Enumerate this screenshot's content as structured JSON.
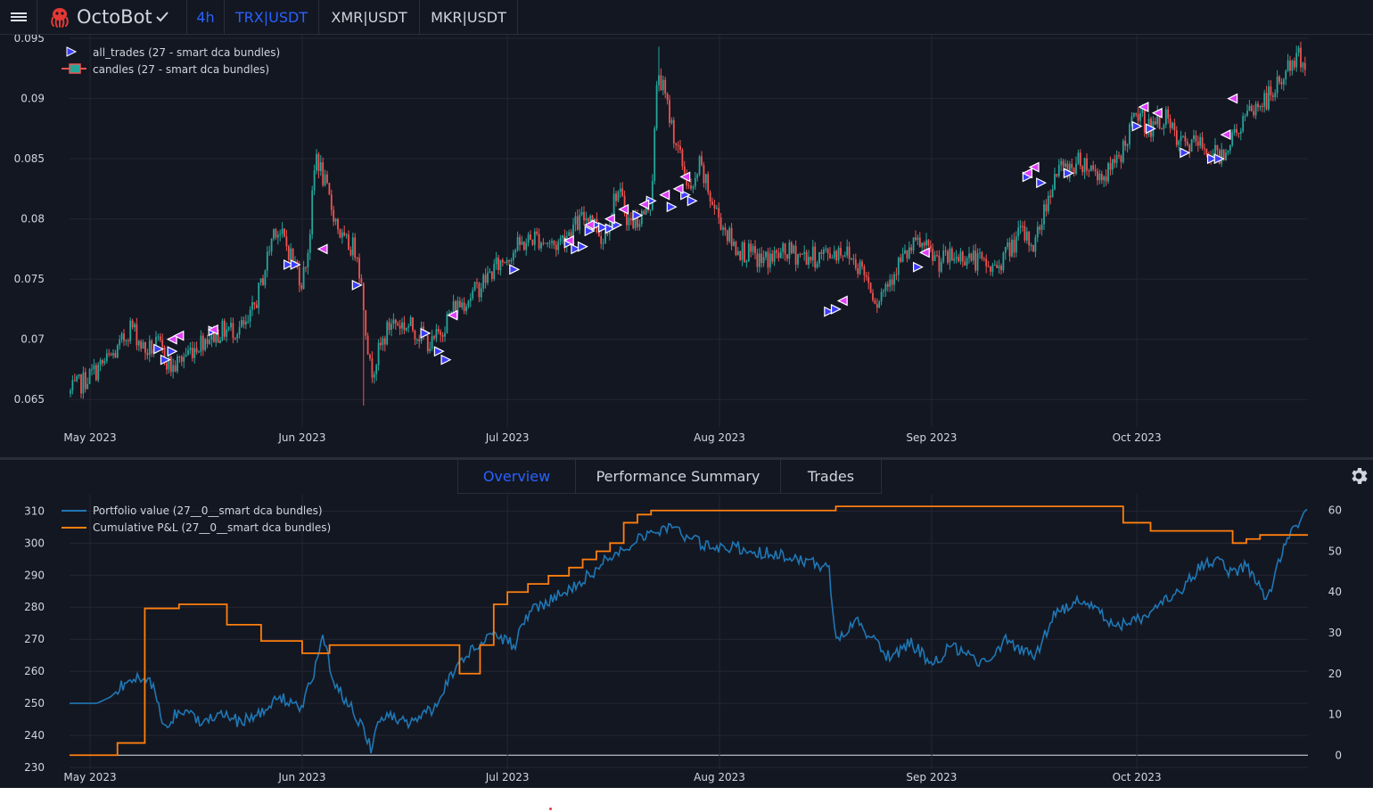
{
  "topbar": {
    "brand": "OctoBot",
    "timeframe": "4h",
    "pairs": [
      {
        "label": "TRX|USDT",
        "active": true
      },
      {
        "label": "XMR|USDT",
        "active": false
      },
      {
        "label": "MKR|USDT",
        "active": false
      }
    ]
  },
  "tabs": [
    {
      "label": "Overview",
      "active": true
    },
    {
      "label": "Performance Summary",
      "active": false
    },
    {
      "label": "Trades",
      "active": false
    }
  ],
  "colors": {
    "accent": "#2962ff",
    "candle_up": "#26a69a",
    "candle_down": "#ef5350",
    "buy_marker": "#3d3dff",
    "sell_marker": "#e040fb",
    "portfolio": "#1f77b4",
    "pnl": "#ff7f0e"
  },
  "chart_data": [
    {
      "type": "candlestick",
      "x_tick_labels": [
        "May 2023",
        "Jun 2023",
        "Jul 2023",
        "Aug 2023",
        "Sep 2023",
        "Oct 2023"
      ],
      "x_tick_dates": [
        "2023-05-01",
        "2023-06-01",
        "2023-07-01",
        "2023-08-01",
        "2023-09-01",
        "2023-10-01"
      ],
      "x_range": [
        "2023-04-28",
        "2023-10-26"
      ],
      "y_tick_labels": [
        "0.095",
        "0.09",
        "0.085",
        "0.08",
        "0.075",
        "0.07",
        "0.065"
      ],
      "ylim": [
        0.0642,
        0.0953
      ],
      "grid": true,
      "legend": {
        "placement": "top-left",
        "entries": [
          "all_trades (27 - smart dca bundles)",
          "candles (27 - smart dca bundles)"
        ]
      },
      "close_series": {
        "dates": [
          "2023-04-28",
          "2023-05-02",
          "2023-05-05",
          "2023-05-07",
          "2023-05-09",
          "2023-05-11",
          "2023-05-13",
          "2023-05-15",
          "2023-05-18",
          "2023-05-21",
          "2023-05-24",
          "2023-05-26",
          "2023-05-28",
          "2023-05-30",
          "2023-06-01",
          "2023-06-02",
          "2023-06-03",
          "2023-06-05",
          "2023-06-07",
          "2023-06-09",
          "2023-06-10",
          "2023-06-11",
          "2023-06-14",
          "2023-06-17",
          "2023-06-20",
          "2023-06-23",
          "2023-06-26",
          "2023-06-29",
          "2023-07-02",
          "2023-07-05",
          "2023-07-08",
          "2023-07-11",
          "2023-07-13",
          "2023-07-15",
          "2023-07-17",
          "2023-07-19",
          "2023-07-21",
          "2023-07-22",
          "2023-07-23",
          "2023-07-26",
          "2023-07-28",
          "2023-07-29",
          "2023-07-31",
          "2023-08-03",
          "2023-08-07",
          "2023-08-11",
          "2023-08-15",
          "2023-08-19",
          "2023-08-22",
          "2023-08-24",
          "2023-08-27",
          "2023-08-30",
          "2023-09-02",
          "2023-09-06",
          "2023-09-10",
          "2023-09-12",
          "2023-09-14",
          "2023-09-16",
          "2023-09-19",
          "2023-09-23",
          "2023-09-26",
          "2023-09-28",
          "2023-10-01",
          "2023-10-03",
          "2023-10-05",
          "2023-10-07",
          "2023-10-10",
          "2023-10-13",
          "2023-10-15",
          "2023-10-17",
          "2023-10-19",
          "2023-10-21",
          "2023-10-23",
          "2023-10-25",
          "2023-10-26"
        ],
        "values": [
          0.0655,
          0.0675,
          0.069,
          0.0712,
          0.069,
          0.0695,
          0.0675,
          0.0688,
          0.0702,
          0.0708,
          0.071,
          0.0745,
          0.0795,
          0.0775,
          0.0748,
          0.078,
          0.0855,
          0.0815,
          0.078,
          0.0775,
          0.0728,
          0.0672,
          0.0715,
          0.071,
          0.0695,
          0.0725,
          0.0738,
          0.0758,
          0.0775,
          0.0785,
          0.0778,
          0.0795,
          0.0805,
          0.0782,
          0.0825,
          0.0795,
          0.0805,
          0.0815,
          0.0925,
          0.0855,
          0.0818,
          0.0845,
          0.0812,
          0.0778,
          0.0765,
          0.0772,
          0.0768,
          0.0775,
          0.0758,
          0.0732,
          0.0762,
          0.078,
          0.0765,
          0.077,
          0.0758,
          0.0772,
          0.0788,
          0.0778,
          0.0838,
          0.0848,
          0.0835,
          0.0845,
          0.0888,
          0.0875,
          0.0885,
          0.0862,
          0.0862,
          0.0852,
          0.0868,
          0.0885,
          0.0895,
          0.0905,
          0.0925,
          0.0935,
          0.0928
        ]
      },
      "spikes": [
        {
          "date": "2023-06-03",
          "high": 0.0858
        },
        {
          "date": "2023-06-10",
          "low": 0.0645
        },
        {
          "date": "2023-07-23",
          "high": 0.0943
        }
      ],
      "buy_trades": {
        "dates": [
          "2023-05-11",
          "2023-05-12",
          "2023-05-13",
          "2023-05-19",
          "2023-05-30",
          "2023-05-31",
          "2023-06-09",
          "2023-06-19",
          "2023-06-21",
          "2023-06-22",
          "2023-07-02",
          "2023-07-10",
          "2023-07-11",
          "2023-07-12",
          "2023-07-13",
          "2023-07-14",
          "2023-07-15",
          "2023-07-16",
          "2023-07-17",
          "2023-07-20",
          "2023-07-22",
          "2023-07-25",
          "2023-07-27",
          "2023-07-28",
          "2023-08-17",
          "2023-08-18",
          "2023-08-30",
          "2023-09-15",
          "2023-09-17",
          "2023-09-21",
          "2023-10-01",
          "2023-10-03",
          "2023-10-08",
          "2023-10-12",
          "2023-10-13"
        ],
        "values": [
          0.0692,
          0.0683,
          0.069,
          0.0707,
          0.0762,
          0.0762,
          0.0745,
          0.0705,
          0.069,
          0.0683,
          0.0758,
          0.078,
          0.0775,
          0.0777,
          0.079,
          0.0795,
          0.0793,
          0.0792,
          0.0795,
          0.0803,
          0.0815,
          0.081,
          0.082,
          0.0815,
          0.0723,
          0.0725,
          0.076,
          0.0835,
          0.083,
          0.0838,
          0.0877,
          0.0875,
          0.0855,
          0.085,
          0.085
        ]
      },
      "sell_trades": {
        "dates": [
          "2023-05-13",
          "2023-05-14",
          "2023-05-19",
          "2023-06-04",
          "2023-06-23",
          "2023-07-10",
          "2023-07-13",
          "2023-07-16",
          "2023-07-18",
          "2023-07-21",
          "2023-07-24",
          "2023-07-26",
          "2023-07-27",
          "2023-08-19",
          "2023-08-31",
          "2023-09-15",
          "2023-09-16",
          "2023-10-02",
          "2023-10-04",
          "2023-10-14",
          "2023-10-15"
        ],
        "values": [
          0.07,
          0.0703,
          0.0708,
          0.0775,
          0.072,
          0.0782,
          0.0795,
          0.08,
          0.0808,
          0.0812,
          0.082,
          0.0825,
          0.0835,
          0.0732,
          0.0772,
          0.0838,
          0.0843,
          0.0893,
          0.0888,
          0.087,
          0.09
        ]
      }
    },
    {
      "type": "line",
      "x_tick_labels": [
        "May 2023",
        "Jun 2023",
        "Jul 2023",
        "Aug 2023",
        "Sep 2023",
        "Oct 2023"
      ],
      "x_tick_dates": [
        "2023-05-01",
        "2023-06-01",
        "2023-07-01",
        "2023-08-01",
        "2023-09-01",
        "2023-10-01"
      ],
      "x_range": [
        "2023-04-28",
        "2023-10-26"
      ],
      "y_tick_labels": [
        "310",
        "300",
        "290",
        "280",
        "270",
        "260",
        "250",
        "240",
        "230"
      ],
      "ylim": [
        230,
        314
      ],
      "y2_tick_labels": [
        "60",
        "50",
        "40",
        "30",
        "20",
        "10",
        "0"
      ],
      "y2lim": [
        -3,
        63
      ],
      "grid": true,
      "legend": {
        "placement": "top-left",
        "entries": [
          "Portfolio value (27__0__smart dca bundles)",
          "Cumulative P&L (27__0__smart dca bundles)"
        ]
      },
      "series": [
        {
          "name": "Portfolio value (27__0__smart dca bundles)",
          "axis": "left",
          "dates": [
            "2023-04-28",
            "2023-05-02",
            "2023-05-04",
            "2023-05-07",
            "2023-05-10",
            "2023-05-12",
            "2023-05-14",
            "2023-05-17",
            "2023-05-20",
            "2023-05-23",
            "2023-05-26",
            "2023-05-29",
            "2023-06-01",
            "2023-06-03",
            "2023-06-04",
            "2023-06-06",
            "2023-06-08",
            "2023-06-10",
            "2023-06-11",
            "2023-06-12",
            "2023-06-14",
            "2023-06-17",
            "2023-06-20",
            "2023-06-23",
            "2023-06-26",
            "2023-06-29",
            "2023-07-02",
            "2023-07-04",
            "2023-07-07",
            "2023-07-10",
            "2023-07-13",
            "2023-07-16",
            "2023-07-19",
            "2023-07-21",
            "2023-07-23",
            "2023-07-25",
            "2023-07-28",
            "2023-07-31",
            "2023-08-03",
            "2023-08-07",
            "2023-08-11",
            "2023-08-14",
            "2023-08-17",
            "2023-08-18",
            "2023-08-21",
            "2023-08-24",
            "2023-08-26",
            "2023-08-29",
            "2023-09-01",
            "2023-09-04",
            "2023-09-08",
            "2023-09-12",
            "2023-09-16",
            "2023-09-19",
            "2023-09-22",
            "2023-09-25",
            "2023-09-28",
            "2023-10-01",
            "2023-10-04",
            "2023-10-07",
            "2023-10-10",
            "2023-10-13",
            "2023-10-15",
            "2023-10-17",
            "2023-10-20",
            "2023-10-23",
            "2023-10-25",
            "2023-10-26"
          ],
          "values": [
            250,
            250,
            252,
            258,
            256,
            242,
            248,
            245,
            247,
            244,
            247,
            252,
            248,
            262,
            270,
            255,
            249,
            242,
            236,
            244,
            246,
            244,
            248,
            260,
            267,
            272,
            268,
            278,
            282,
            286,
            290,
            296,
            300,
            303,
            304,
            305,
            301,
            298,
            299,
            297,
            296,
            294,
            292,
            270,
            276,
            268,
            264,
            269,
            262,
            268,
            262,
            270,
            264,
            278,
            282,
            279,
            274,
            276,
            280,
            284,
            292,
            295,
            290,
            293,
            282,
            303,
            306,
            311
          ]
        },
        {
          "name": "Cumulative P&L (27__0__smart dca bundles)",
          "axis": "right",
          "step": true,
          "dates": [
            "2023-04-28",
            "2023-05-05",
            "2023-05-09",
            "2023-05-14",
            "2023-05-21",
            "2023-05-26",
            "2023-06-01",
            "2023-06-05",
            "2023-06-09",
            "2023-06-16",
            "2023-06-23",
            "2023-06-24",
            "2023-06-27",
            "2023-06-29",
            "2023-07-01",
            "2023-07-04",
            "2023-07-07",
            "2023-07-10",
            "2023-07-12",
            "2023-07-14",
            "2023-07-16",
            "2023-07-18",
            "2023-07-20",
            "2023-07-22",
            "2023-07-25",
            "2023-07-28",
            "2023-08-08",
            "2023-08-18",
            "2023-08-25",
            "2023-09-04",
            "2023-09-15",
            "2023-09-29",
            "2023-10-03",
            "2023-10-09",
            "2023-10-15",
            "2023-10-17",
            "2023-10-19",
            "2023-10-26"
          ],
          "values": [
            0,
            3,
            36,
            37,
            32,
            28,
            25,
            27,
            27,
            27,
            27,
            20,
            27,
            37,
            40,
            42,
            44,
            46,
            48,
            50,
            52,
            57,
            59,
            60,
            60,
            60,
            60,
            61,
            61,
            61,
            61,
            57,
            55,
            55,
            52,
            53,
            54,
            54
          ]
        }
      ]
    }
  ]
}
